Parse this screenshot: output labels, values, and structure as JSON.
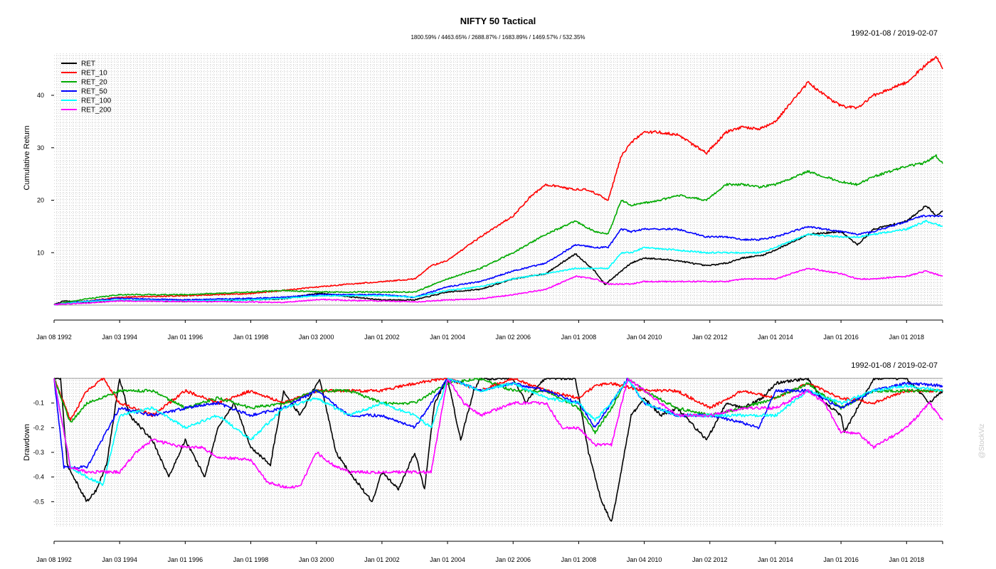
{
  "chart_data": [
    {
      "type": "line",
      "title": "NIFTY 50 Tactical",
      "subtitle": "1800.59% / 4463.65% / 2688.87% / 1683.89% / 1469.57% / 532.35%",
      "date_range": "1992-01-08 / 2019-02-07",
      "xlabel": "",
      "ylabel": "Cumulative Return",
      "x_ticks": [
        "Jan 08 1992",
        "Jan 03 1994",
        "Jan 01 1996",
        "Jan 01 1998",
        "Jan 03 2000",
        "Jan 01 2002",
        "Jan 01 2004",
        "Jan 02 2006",
        "Jan 01 2008",
        "Jan 04 2010",
        "Jan 02 2012",
        "Jan 01 2014",
        "Jan 01 2016",
        "Jan 01 2018"
      ],
      "x_range": [
        1992.0,
        2019.1
      ],
      "y_ticks": [
        10,
        20,
        30,
        40
      ],
      "ylim": [
        0,
        48
      ],
      "grid": true,
      "legend_position": "top-left",
      "series": [
        {
          "name": "RET",
          "color": "#000000",
          "x": [
            1992.0,
            1992.3,
            1993.0,
            1994.0,
            1994.8,
            1996.0,
            1998.0,
            1999.0,
            2000.1,
            2001.0,
            2002.0,
            2003.0,
            2004.0,
            2005.0,
            2006.0,
            2006.5,
            2007.0,
            2007.9,
            2008.5,
            2008.8,
            2009.3,
            2009.6,
            2010.0,
            2011.0,
            2011.9,
            2012.5,
            2013.0,
            2013.6,
            2014.0,
            2015.0,
            2016.0,
            2016.5,
            2017.0,
            2018.0,
            2018.6,
            2018.9,
            2019.1
          ],
          "values": [
            0.1,
            0.8,
            0.5,
            0.9,
            0.8,
            0.7,
            1.0,
            1.2,
            2.3,
            1.6,
            1.0,
            1.0,
            2.5,
            3.0,
            5.0,
            5.5,
            6.0,
            9.8,
            6.5,
            3.9,
            6.5,
            8.0,
            9.0,
            8.5,
            7.5,
            8.0,
            9.0,
            9.5,
            10.5,
            13.5,
            14.0,
            11.5,
            14.5,
            16.0,
            19.0,
            17.0,
            18.0
          ]
        },
        {
          "name": "RET_10",
          "color": "#ff0000",
          "x": [
            1992.0,
            1993.0,
            1994.0,
            1996.0,
            1998.0,
            1999.0,
            2000.1,
            2001.0,
            2002.0,
            2003.0,
            2003.5,
            2004.0,
            2005.0,
            2006.0,
            2006.5,
            2007.0,
            2007.9,
            2008.3,
            2008.9,
            2009.3,
            2009.6,
            2010.0,
            2010.4,
            2011.0,
            2011.9,
            2012.5,
            2013.0,
            2013.5,
            2014.0,
            2015.0,
            2015.5,
            2016.0,
            2016.5,
            2017.0,
            2018.0,
            2018.9,
            2019.1
          ],
          "values": [
            0.1,
            0.8,
            1.5,
            1.8,
            2.2,
            2.8,
            3.5,
            4.0,
            4.5,
            5.0,
            7.5,
            8.5,
            13.0,
            17.0,
            20.5,
            23.0,
            22.0,
            22.0,
            20.0,
            28.5,
            31.0,
            33.0,
            33.0,
            32.5,
            29.0,
            33.0,
            34.0,
            33.5,
            35.0,
            42.5,
            40.0,
            38.0,
            37.5,
            40.0,
            42.5,
            47.5,
            45.0
          ]
        },
        {
          "name": "RET_20",
          "color": "#00aa00",
          "x": [
            1992.0,
            1993.0,
            1994.0,
            1996.0,
            1998.0,
            1999.0,
            2000.1,
            2001.0,
            2002.0,
            2003.0,
            2004.0,
            2005.0,
            2006.0,
            2007.0,
            2007.9,
            2008.5,
            2008.9,
            2009.3,
            2009.6,
            2010.5,
            2011.0,
            2011.9,
            2012.5,
            2013.0,
            2013.5,
            2014.0,
            2015.0,
            2016.0,
            2016.5,
            2017.0,
            2018.0,
            2018.5,
            2018.9,
            2019.1
          ],
          "values": [
            0.1,
            1.2,
            2.0,
            2.0,
            2.5,
            2.8,
            2.5,
            2.5,
            2.5,
            2.5,
            5.0,
            7.0,
            10.0,
            13.5,
            16.0,
            14.0,
            13.5,
            20.0,
            19.0,
            20.0,
            21.0,
            20.0,
            23.0,
            23.0,
            22.5,
            23.0,
            25.5,
            23.5,
            23.0,
            24.5,
            26.5,
            27.0,
            28.5,
            27.0
          ]
        },
        {
          "name": "RET_50",
          "color": "#0000ff",
          "x": [
            1992.0,
            1993.0,
            1994.0,
            1996.0,
            1998.0,
            1999.0,
            2000.1,
            2001.0,
            2002.0,
            2003.0,
            2004.0,
            2005.0,
            2006.0,
            2007.0,
            2007.9,
            2008.5,
            2008.9,
            2009.3,
            2009.6,
            2010.0,
            2011.0,
            2011.9,
            2012.5,
            2013.0,
            2013.5,
            2014.0,
            2015.0,
            2016.0,
            2016.5,
            2017.0,
            2018.0,
            2018.5,
            2019.1
          ],
          "values": [
            0.1,
            0.8,
            1.3,
            1.0,
            1.3,
            1.5,
            2.0,
            2.0,
            2.0,
            1.5,
            3.5,
            4.5,
            6.5,
            8.0,
            11.5,
            11.0,
            11.0,
            14.5,
            14.0,
            14.5,
            14.5,
            13.0,
            13.0,
            12.5,
            12.5,
            13.0,
            15.0,
            14.0,
            13.5,
            14.0,
            16.0,
            17.0,
            17.0
          ]
        },
        {
          "name": "RET_100",
          "color": "#00ffff",
          "x": [
            1992.0,
            1993.0,
            1994.0,
            1996.0,
            1998.0,
            1999.0,
            2000.1,
            2001.0,
            2002.0,
            2003.0,
            2004.0,
            2005.0,
            2006.0,
            2007.0,
            2007.9,
            2008.5,
            2008.9,
            2009.3,
            2009.6,
            2010.0,
            2011.0,
            2011.9,
            2012.5,
            2013.0,
            2013.5,
            2014.0,
            2015.0,
            2016.0,
            2016.5,
            2017.0,
            2018.0,
            2018.6,
            2019.1
          ],
          "values": [
            0.1,
            0.7,
            1.0,
            0.8,
            1.0,
            1.3,
            1.8,
            1.8,
            1.8,
            1.5,
            2.8,
            3.5,
            5.0,
            6.0,
            7.0,
            7.0,
            7.0,
            10.0,
            10.0,
            11.0,
            10.5,
            10.0,
            10.0,
            10.0,
            10.0,
            11.0,
            13.5,
            13.0,
            13.0,
            13.5,
            14.5,
            16.0,
            15.0
          ]
        },
        {
          "name": "RET_200",
          "color": "#ff00ff",
          "x": [
            1992.0,
            1993.0,
            1994.0,
            1996.0,
            1998.0,
            1999.0,
            2000.1,
            2001.0,
            2002.0,
            2003.0,
            2004.0,
            2005.0,
            2006.0,
            2007.0,
            2007.9,
            2008.5,
            2008.9,
            2009.3,
            2009.6,
            2010.0,
            2011.0,
            2011.9,
            2012.5,
            2013.0,
            2013.5,
            2014.0,
            2015.0,
            2016.0,
            2016.5,
            2017.0,
            2018.0,
            2018.6,
            2019.1
          ],
          "values": [
            0.1,
            0.4,
            0.8,
            0.7,
            0.6,
            0.5,
            1.1,
            0.9,
            0.8,
            0.6,
            1.0,
            1.2,
            2.0,
            3.0,
            5.5,
            5.0,
            4.0,
            4.0,
            4.0,
            4.5,
            4.5,
            4.5,
            4.5,
            5.0,
            5.0,
            5.0,
            7.0,
            6.0,
            5.0,
            5.0,
            5.5,
            6.5,
            5.5
          ]
        }
      ]
    },
    {
      "type": "line",
      "title": "",
      "date_range": "1992-01-08 / 2019-02-07",
      "xlabel": "",
      "ylabel": "Drawdown",
      "x_ticks": [
        "Jan 08 1992",
        "Jan 03 1994",
        "Jan 01 1996",
        "Jan 01 1998",
        "Jan 03 2000",
        "Jan 01 2002",
        "Jan 01 2004",
        "Jan 02 2006",
        "Jan 01 2008",
        "Jan 04 2010",
        "Jan 02 2012",
        "Jan 01 2014",
        "Jan 01 2016",
        "Jan 01 2018"
      ],
      "x_range": [
        1992.0,
        2019.1
      ],
      "y_ticks": [
        -0.1,
        -0.2,
        -0.3,
        -0.4,
        -0.5
      ],
      "ylim": [
        -0.6,
        0
      ],
      "grid": true,
      "series": [
        {
          "name": "RET",
          "color": "#000000",
          "x": [
            1992.0,
            1992.2,
            1992.4,
            1993.0,
            1993.3,
            1993.6,
            1994.0,
            1994.3,
            1995.0,
            1995.5,
            1996.0,
            1996.6,
            1997.0,
            1997.5,
            1998.0,
            1998.6,
            1999.0,
            1999.5,
            2000.1,
            2000.6,
            2001.0,
            2001.7,
            2002.0,
            2002.5,
            2003.0,
            2003.3,
            2003.6,
            2004.0,
            2004.4,
            2004.8,
            2005.0,
            2006.0,
            2006.4,
            2006.8,
            2007.0,
            2007.9,
            2008.3,
            2008.7,
            2009.0,
            2009.2,
            2009.6,
            2010.0,
            2010.5,
            2011.0,
            2011.9,
            2012.5,
            2013.0,
            2013.6,
            2014.0,
            2015.0,
            2015.5,
            2016.0,
            2016.1,
            2016.5,
            2017.0,
            2018.0,
            2018.7,
            2019.1
          ],
          "values": [
            0.0,
            0.0,
            -0.35,
            -0.5,
            -0.45,
            -0.35,
            0.0,
            -0.15,
            -0.25,
            -0.4,
            -0.25,
            -0.4,
            -0.2,
            -0.1,
            -0.28,
            -0.35,
            -0.05,
            -0.15,
            0.0,
            -0.3,
            -0.38,
            -0.5,
            -0.38,
            -0.45,
            -0.3,
            -0.45,
            -0.1,
            0.0,
            -0.25,
            -0.05,
            0.0,
            0.0,
            -0.1,
            -0.02,
            0.0,
            0.0,
            -0.3,
            -0.5,
            -0.58,
            -0.45,
            -0.15,
            -0.08,
            -0.15,
            -0.12,
            -0.25,
            -0.1,
            -0.12,
            -0.08,
            -0.02,
            0.0,
            -0.1,
            -0.15,
            -0.22,
            -0.12,
            0.0,
            0.0,
            -0.1,
            -0.05
          ]
        },
        {
          "name": "RET_10",
          "color": "#ff0000",
          "x": [
            1992.0,
            1992.5,
            1993.0,
            1993.5,
            1994.0,
            1995.0,
            1996.0,
            1997.0,
            1998.0,
            1999.0,
            2000.0,
            2001.0,
            2002.0,
            2003.0,
            2004.0,
            2005.0,
            2006.0,
            2007.0,
            2008.0,
            2008.5,
            2009.0,
            2010.0,
            2011.0,
            2012.0,
            2013.0,
            2014.0,
            2015.0,
            2016.0,
            2017.0,
            2018.0,
            2019.1
          ],
          "values": [
            0.0,
            -0.17,
            -0.05,
            0.0,
            -0.1,
            -0.15,
            -0.05,
            -0.1,
            -0.05,
            -0.1,
            -0.05,
            -0.05,
            -0.05,
            -0.02,
            0.0,
            -0.05,
            0.0,
            -0.05,
            -0.08,
            -0.03,
            -0.02,
            -0.05,
            -0.05,
            -0.12,
            -0.05,
            -0.08,
            -0.02,
            -0.08,
            -0.1,
            -0.05,
            -0.05
          ]
        },
        {
          "name": "RET_20",
          "color": "#00aa00",
          "x": [
            1992.0,
            1992.5,
            1993.0,
            1994.0,
            1995.0,
            1996.0,
            1997.0,
            1998.0,
            1999.0,
            2000.0,
            2001.0,
            2002.0,
            2003.0,
            2004.0,
            2005.0,
            2006.0,
            2007.0,
            2008.0,
            2008.5,
            2009.0,
            2009.5,
            2010.0,
            2011.0,
            2012.0,
            2013.0,
            2014.0,
            2015.0,
            2016.0,
            2017.0,
            2018.0,
            2019.1
          ],
          "values": [
            0.0,
            -0.18,
            -0.1,
            -0.05,
            -0.05,
            -0.12,
            -0.08,
            -0.12,
            -0.1,
            -0.05,
            -0.05,
            -0.1,
            -0.1,
            -0.02,
            0.0,
            -0.05,
            -0.05,
            -0.12,
            -0.22,
            -0.12,
            0.0,
            -0.05,
            -0.12,
            -0.15,
            -0.12,
            -0.08,
            -0.02,
            -0.12,
            -0.05,
            -0.05,
            -0.05
          ]
        },
        {
          "name": "RET_50",
          "color": "#0000ff",
          "x": [
            1992.0,
            1992.3,
            1993.0,
            1994.0,
            1995.0,
            1996.0,
            1997.0,
            1998.0,
            1999.0,
            2000.0,
            2001.0,
            2002.0,
            2003.0,
            2003.5,
            2004.0,
            2005.0,
            2006.0,
            2007.0,
            2008.0,
            2008.5,
            2009.0,
            2009.5,
            2010.0,
            2011.0,
            2012.0,
            2013.0,
            2013.5,
            2014.0,
            2015.0,
            2016.0,
            2017.0,
            2018.0,
            2019.1
          ],
          "values": [
            0.0,
            -0.36,
            -0.36,
            -0.12,
            -0.15,
            -0.12,
            -0.1,
            -0.15,
            -0.12,
            -0.05,
            -0.15,
            -0.15,
            -0.2,
            -0.1,
            0.0,
            -0.05,
            -0.02,
            -0.05,
            -0.1,
            -0.2,
            -0.1,
            0.0,
            -0.1,
            -0.15,
            -0.15,
            -0.18,
            -0.2,
            -0.05,
            -0.05,
            -0.12,
            -0.05,
            -0.02,
            -0.03
          ]
        },
        {
          "name": "RET_100",
          "color": "#00ffff",
          "x": [
            1992.0,
            1992.5,
            1993.0,
            1993.5,
            1994.0,
            1995.0,
            1996.0,
            1997.0,
            1998.0,
            1999.0,
            2000.0,
            2001.0,
            2002.0,
            2003.0,
            2003.5,
            2004.0,
            2005.0,
            2006.0,
            2007.0,
            2008.0,
            2008.5,
            2009.0,
            2009.5,
            2010.0,
            2011.0,
            2012.0,
            2013.0,
            2014.0,
            2015.0,
            2016.0,
            2017.0,
            2018.0,
            2019.1
          ],
          "values": [
            0.0,
            -0.36,
            -0.4,
            -0.43,
            -0.15,
            -0.12,
            -0.2,
            -0.15,
            -0.25,
            -0.12,
            -0.08,
            -0.15,
            -0.1,
            -0.15,
            -0.2,
            0.0,
            -0.05,
            -0.02,
            -0.08,
            -0.1,
            -0.17,
            -0.1,
            0.0,
            -0.1,
            -0.15,
            -0.15,
            -0.15,
            -0.15,
            -0.05,
            -0.1,
            -0.05,
            -0.03,
            -0.05
          ]
        },
        {
          "name": "RET_200",
          "color": "#ff00ff",
          "x": [
            1992.0,
            1992.5,
            1993.0,
            1993.5,
            1994.0,
            1994.5,
            1995.0,
            1996.0,
            1996.5,
            1997.0,
            1998.0,
            1998.5,
            1999.0,
            1999.5,
            2000.0,
            2000.5,
            2001.0,
            2002.0,
            2003.0,
            2003.5,
            2004.0,
            2004.5,
            2005.0,
            2006.0,
            2007.0,
            2007.5,
            2008.0,
            2008.5,
            2009.0,
            2009.5,
            2010.0,
            2011.0,
            2012.0,
            2013.0,
            2014.0,
            2015.0,
            2015.5,
            2016.0,
            2016.5,
            2017.0,
            2018.0,
            2018.7,
            2019.1
          ],
          "values": [
            0.0,
            -0.36,
            -0.38,
            -0.38,
            -0.38,
            -0.3,
            -0.25,
            -0.28,
            -0.28,
            -0.32,
            -0.33,
            -0.42,
            -0.44,
            -0.44,
            -0.3,
            -0.35,
            -0.38,
            -0.38,
            -0.38,
            -0.38,
            0.0,
            -0.1,
            -0.15,
            -0.1,
            -0.1,
            -0.2,
            -0.2,
            -0.27,
            -0.27,
            0.0,
            -0.05,
            -0.15,
            -0.15,
            -0.12,
            -0.12,
            -0.05,
            -0.1,
            -0.22,
            -0.22,
            -0.28,
            -0.2,
            -0.1,
            -0.17
          ]
        }
      ]
    }
  ],
  "watermark": "@StockViz"
}
